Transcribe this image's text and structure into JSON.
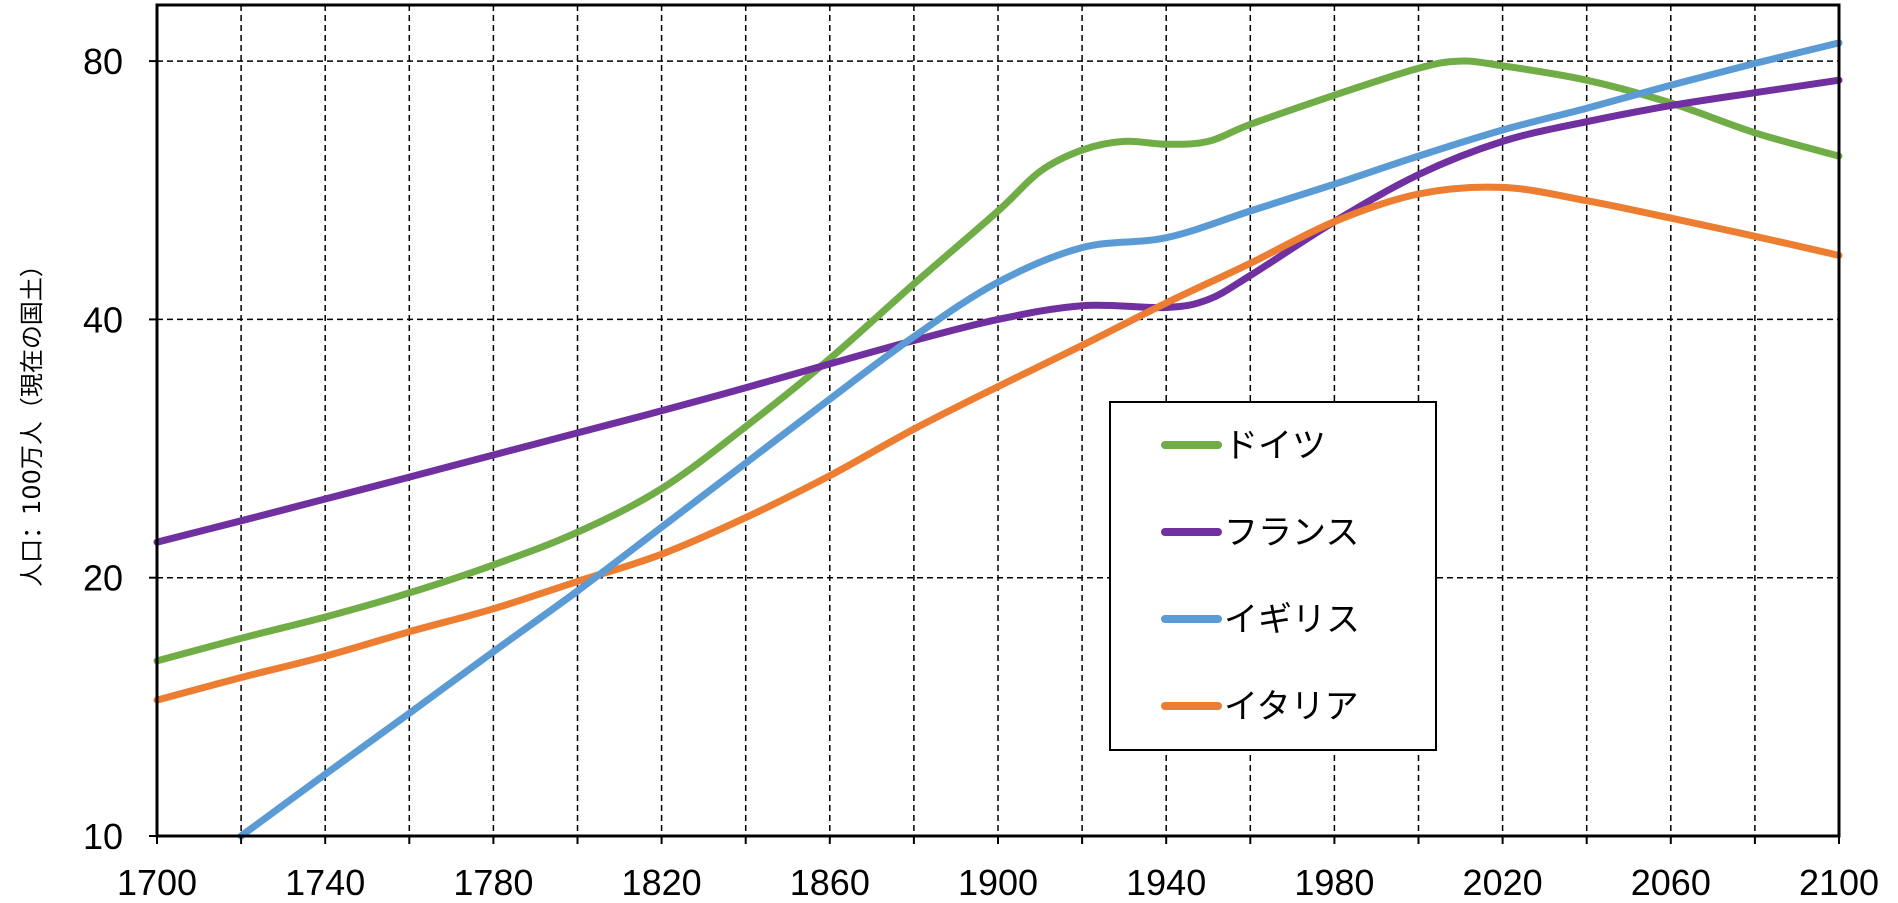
{
  "chart_data": {
    "type": "line",
    "ylabel": "人口：100万人（現在の国土）",
    "xlabel": "",
    "title": "",
    "y_scale": "log",
    "xlim": [
      1700,
      2100
    ],
    "ylim": [
      10,
      93
    ],
    "x_ticks": [
      1700,
      1740,
      1780,
      1820,
      1860,
      1900,
      1940,
      1980,
      2020,
      2060,
      2100
    ],
    "x_tick_labels": [
      "1700",
      "1740",
      "1780",
      "1820",
      "1860",
      "1900",
      "1940",
      "1980",
      "2020",
      "2060",
      "2100"
    ],
    "y_ticks": [
      10,
      20,
      40,
      80
    ],
    "y_tick_labels": [
      "10",
      "20",
      "40",
      "80"
    ],
    "grid": "dashed, every 20 years and at each labeled y tick",
    "legend_position": "center-right",
    "series": [
      {
        "name": "ドイツ",
        "color": "#70ad47",
        "points": [
          [
            1700,
            16
          ],
          [
            1720,
            17
          ],
          [
            1740,
            18
          ],
          [
            1760,
            19.2
          ],
          [
            1780,
            20.7
          ],
          [
            1800,
            22.6
          ],
          [
            1820,
            25.4
          ],
          [
            1840,
            30
          ],
          [
            1860,
            36
          ],
          [
            1880,
            44
          ],
          [
            1900,
            53.5
          ],
          [
            1910,
            59.5
          ],
          [
            1920,
            63
          ],
          [
            1930,
            64.5
          ],
          [
            1940,
            64
          ],
          [
            1950,
            64.5
          ],
          [
            1960,
            67.5
          ],
          [
            1980,
            73
          ],
          [
            2000,
            78.5
          ],
          [
            2010,
            80
          ],
          [
            2020,
            79
          ],
          [
            2040,
            76
          ],
          [
            2060,
            71.5
          ],
          [
            2080,
            66
          ],
          [
            2100,
            62
          ]
        ]
      },
      {
        "name": "フランス",
        "color": "#7030a0",
        "points": [
          [
            1700,
            22
          ],
          [
            1720,
            23.3
          ],
          [
            1740,
            24.7
          ],
          [
            1760,
            26.2
          ],
          [
            1780,
            27.8
          ],
          [
            1800,
            29.5
          ],
          [
            1820,
            31.3
          ],
          [
            1840,
            33.3
          ],
          [
            1860,
            35.5
          ],
          [
            1880,
            37.8
          ],
          [
            1900,
            40
          ],
          [
            1920,
            41.5
          ],
          [
            1940,
            41.3
          ],
          [
            1950,
            42.2
          ],
          [
            1960,
            45
          ],
          [
            1980,
            52
          ],
          [
            2000,
            59
          ],
          [
            2020,
            64.5
          ],
          [
            2040,
            68
          ],
          [
            2060,
            71
          ],
          [
            2080,
            73.5
          ],
          [
            2100,
            76
          ]
        ]
      },
      {
        "name": "イギリス",
        "color": "#5b9bd5",
        "points": [
          [
            1720,
            10
          ],
          [
            1740,
            11.8
          ],
          [
            1760,
            13.9
          ],
          [
            1780,
            16.4
          ],
          [
            1800,
            19.3
          ],
          [
            1820,
            22.9
          ],
          [
            1840,
            27.2
          ],
          [
            1860,
            32.3
          ],
          [
            1880,
            38.2
          ],
          [
            1900,
            44.2
          ],
          [
            1920,
            48.5
          ],
          [
            1940,
            49.8
          ],
          [
            1960,
            53.5
          ],
          [
            1980,
            57.5
          ],
          [
            2000,
            62
          ],
          [
            2020,
            66.5
          ],
          [
            2040,
            70.5
          ],
          [
            2060,
            75
          ],
          [
            2080,
            79.5
          ],
          [
            2100,
            84
          ]
        ]
      },
      {
        "name": "イタリア",
        "color": "#ed7d31",
        "points": [
          [
            1700,
            14.4
          ],
          [
            1720,
            15.3
          ],
          [
            1740,
            16.2
          ],
          [
            1760,
            17.3
          ],
          [
            1780,
            18.4
          ],
          [
            1800,
            19.8
          ],
          [
            1820,
            21.3
          ],
          [
            1840,
            23.5
          ],
          [
            1860,
            26.3
          ],
          [
            1880,
            29.8
          ],
          [
            1900,
            33.4
          ],
          [
            1920,
            37.3
          ],
          [
            1940,
            41.8
          ],
          [
            1960,
            46.5
          ],
          [
            1980,
            52
          ],
          [
            2000,
            56
          ],
          [
            2020,
            57
          ],
          [
            2040,
            55
          ],
          [
            2060,
            52.5
          ],
          [
            2080,
            50
          ],
          [
            2100,
            47.5
          ]
        ]
      }
    ]
  }
}
